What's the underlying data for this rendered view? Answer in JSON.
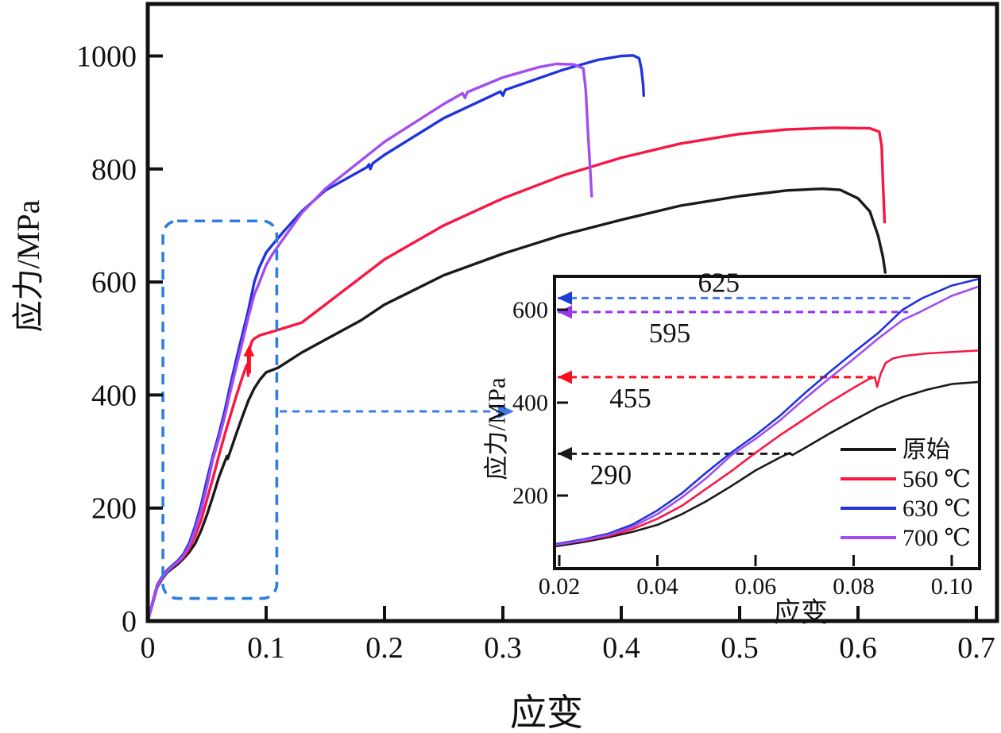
{
  "page": {
    "background": "#ffffff"
  },
  "chart_data": {
    "type": "line",
    "title": "",
    "xlabel": "应变",
    "ylabel": "应力/MPa",
    "main_axis": {
      "xlim": [
        0,
        0.7
      ],
      "ylim": [
        0,
        1100
      ],
      "xtick_labels": [
        "0",
        "0.1",
        "0.2",
        "0.3",
        "0.4",
        "0.5",
        "0.6",
        "0.7"
      ],
      "ytick_labels": [
        "0",
        "200",
        "400",
        "600",
        "800",
        "1000"
      ],
      "grid": false
    },
    "inset_axis": {
      "xlabel": "应变",
      "ylabel": "应力/MPa",
      "xlim": [
        0.019,
        0.1057
      ],
      "ylim": [
        43,
        672
      ],
      "xtick_labels": [
        "0.02",
        "0.04",
        "0.06",
        "0.08",
        "0.10"
      ],
      "ytick_labels": [
        "200",
        "400",
        "600"
      ],
      "grid": false
    },
    "legend_position": "inset-bottom-right",
    "series": [
      {
        "name": "原始",
        "color": "#1a1a1a",
        "points": [
          [
            0,
            0
          ],
          [
            0.004,
            30
          ],
          [
            0.008,
            60
          ],
          [
            0.012,
            74
          ],
          [
            0.016,
            85
          ],
          [
            0.02,
            92
          ],
          [
            0.025,
            100
          ],
          [
            0.03,
            110
          ],
          [
            0.035,
            122
          ],
          [
            0.04,
            137
          ],
          [
            0.045,
            160
          ],
          [
            0.05,
            188
          ],
          [
            0.055,
            220
          ],
          [
            0.06,
            254
          ],
          [
            0.065,
            282
          ],
          [
            0.067,
            292
          ],
          [
            0.0675,
            287
          ],
          [
            0.07,
            302
          ],
          [
            0.075,
            333
          ],
          [
            0.08,
            362
          ],
          [
            0.085,
            390
          ],
          [
            0.09,
            412
          ],
          [
            0.095,
            428
          ],
          [
            0.1,
            440
          ],
          [
            0.11,
            448
          ],
          [
            0.13,
            475
          ],
          [
            0.15,
            498
          ],
          [
            0.18,
            532
          ],
          [
            0.2,
            560
          ],
          [
            0.25,
            612
          ],
          [
            0.3,
            650
          ],
          [
            0.35,
            683
          ],
          [
            0.4,
            710
          ],
          [
            0.45,
            735
          ],
          [
            0.5,
            752
          ],
          [
            0.54,
            762
          ],
          [
            0.57,
            765
          ],
          [
            0.585,
            763
          ],
          [
            0.6,
            748
          ],
          [
            0.61,
            725
          ],
          [
            0.617,
            682
          ],
          [
            0.621,
            645
          ],
          [
            0.623,
            617
          ]
        ]
      },
      {
        "name": "560 ℃",
        "color": "#f81743",
        "points": [
          [
            0,
            0
          ],
          [
            0.004,
            32
          ],
          [
            0.008,
            62
          ],
          [
            0.012,
            76
          ],
          [
            0.016,
            87
          ],
          [
            0.02,
            95
          ],
          [
            0.025,
            103
          ],
          [
            0.03,
            113
          ],
          [
            0.035,
            128
          ],
          [
            0.04,
            150
          ],
          [
            0.045,
            178
          ],
          [
            0.05,
            215
          ],
          [
            0.055,
            252
          ],
          [
            0.06,
            292
          ],
          [
            0.065,
            330
          ],
          [
            0.07,
            365
          ],
          [
            0.075,
            400
          ],
          [
            0.08,
            432
          ],
          [
            0.083,
            450
          ],
          [
            0.0843,
            455
          ],
          [
            0.0848,
            434
          ],
          [
            0.0855,
            462
          ],
          [
            0.0865,
            485
          ],
          [
            0.088,
            495
          ],
          [
            0.09,
            500
          ],
          [
            0.095,
            506
          ],
          [
            0.105,
            512
          ],
          [
            0.13,
            528
          ],
          [
            0.15,
            560
          ],
          [
            0.2,
            640
          ],
          [
            0.25,
            700
          ],
          [
            0.3,
            748
          ],
          [
            0.35,
            788
          ],
          [
            0.4,
            820
          ],
          [
            0.45,
            845
          ],
          [
            0.5,
            862
          ],
          [
            0.54,
            870
          ],
          [
            0.58,
            873
          ],
          [
            0.61,
            872
          ],
          [
            0.618,
            866
          ],
          [
            0.62,
            840
          ],
          [
            0.621,
            780
          ],
          [
            0.6225,
            706
          ]
        ]
      },
      {
        "name": "630 ℃",
        "color": "#2033dd",
        "points": [
          [
            0,
            0
          ],
          [
            0.004,
            33
          ],
          [
            0.008,
            64
          ],
          [
            0.012,
            78
          ],
          [
            0.016,
            89
          ],
          [
            0.02,
            97
          ],
          [
            0.025,
            106
          ],
          [
            0.03,
            118
          ],
          [
            0.035,
            138
          ],
          [
            0.04,
            168
          ],
          [
            0.045,
            205
          ],
          [
            0.05,
            250
          ],
          [
            0.055,
            292
          ],
          [
            0.06,
            330
          ],
          [
            0.065,
            372
          ],
          [
            0.07,
            420
          ],
          [
            0.075,
            465
          ],
          [
            0.08,
            508
          ],
          [
            0.085,
            550
          ],
          [
            0.09,
            600
          ],
          [
            0.094,
            625
          ],
          [
            0.1,
            652
          ],
          [
            0.105,
            665
          ],
          [
            0.115,
            690
          ],
          [
            0.13,
            725
          ],
          [
            0.15,
            762
          ],
          [
            0.185,
            803
          ],
          [
            0.187,
            808
          ],
          [
            0.188,
            800
          ],
          [
            0.19,
            810
          ],
          [
            0.2,
            825
          ],
          [
            0.25,
            890
          ],
          [
            0.298,
            937
          ],
          [
            0.3,
            930
          ],
          [
            0.302,
            940
          ],
          [
            0.35,
            975
          ],
          [
            0.38,
            993
          ],
          [
            0.4,
            1000
          ],
          [
            0.41,
            1001
          ],
          [
            0.415,
            996
          ],
          [
            0.417,
            978
          ],
          [
            0.4185,
            948
          ],
          [
            0.419,
            930
          ]
        ]
      },
      {
        "name": "700 ℃",
        "color": "#a14df0",
        "points": [
          [
            0,
            0
          ],
          [
            0.004,
            31
          ],
          [
            0.008,
            62
          ],
          [
            0.012,
            76
          ],
          [
            0.016,
            87
          ],
          [
            0.02,
            95
          ],
          [
            0.025,
            104
          ],
          [
            0.03,
            115
          ],
          [
            0.035,
            133
          ],
          [
            0.04,
            160
          ],
          [
            0.045,
            196
          ],
          [
            0.05,
            238
          ],
          [
            0.055,
            286
          ],
          [
            0.06,
            322
          ],
          [
            0.065,
            362
          ],
          [
            0.07,
            408
          ],
          [
            0.075,
            452
          ],
          [
            0.08,
            494
          ],
          [
            0.085,
            538
          ],
          [
            0.09,
            578
          ],
          [
            0.0935,
            595
          ],
          [
            0.1,
            630
          ],
          [
            0.105,
            648
          ],
          [
            0.115,
            678
          ],
          [
            0.13,
            722
          ],
          [
            0.15,
            765
          ],
          [
            0.2,
            848
          ],
          [
            0.25,
            915
          ],
          [
            0.266,
            934
          ],
          [
            0.268,
            926
          ],
          [
            0.27,
            936
          ],
          [
            0.3,
            962
          ],
          [
            0.33,
            980
          ],
          [
            0.345,
            986
          ],
          [
            0.36,
            985
          ],
          [
            0.368,
            978
          ],
          [
            0.37,
            940
          ],
          [
            0.372,
            860
          ],
          [
            0.374,
            790
          ],
          [
            0.375,
            752
          ]
        ]
      }
    ],
    "yield_annotations": [
      {
        "label": "625",
        "value": 625,
        "x_end": 0.0922,
        "color": "#1c3fd9",
        "line_color": "#4479ec",
        "label_x": 0.0525,
        "label_side": "above"
      },
      {
        "label": "595",
        "value": 595,
        "x_end": 0.0911,
        "color": "#9a35ee",
        "line_color": "#9a35ee",
        "label_x": 0.0425,
        "label_side": "below"
      },
      {
        "label": "455",
        "value": 455,
        "x_end": 0.0838,
        "color": "#fb0f1f",
        "line_color": "#fb0f1f",
        "label_x": 0.0345,
        "label_side": "below"
      },
      {
        "label": "290",
        "value": 290,
        "x_end": 0.0675,
        "color": "#1a1a1a",
        "line_color": "#1a1a1a",
        "label_x": 0.0305,
        "label_side": "below"
      }
    ],
    "zoom_box": {
      "x0": 0.0128,
      "x1": 0.109,
      "y0": 40,
      "y1": 708,
      "color": "#2d7de2"
    },
    "leader_arrow": {
      "x0": 0.1115,
      "x1": 0.296,
      "y": 371,
      "color": "#3b7ce8"
    },
    "pointer_arrow": {
      "x": 0.0855,
      "tip_stress": 488,
      "tail_stress": 438,
      "color": "#fb0f1f"
    }
  }
}
